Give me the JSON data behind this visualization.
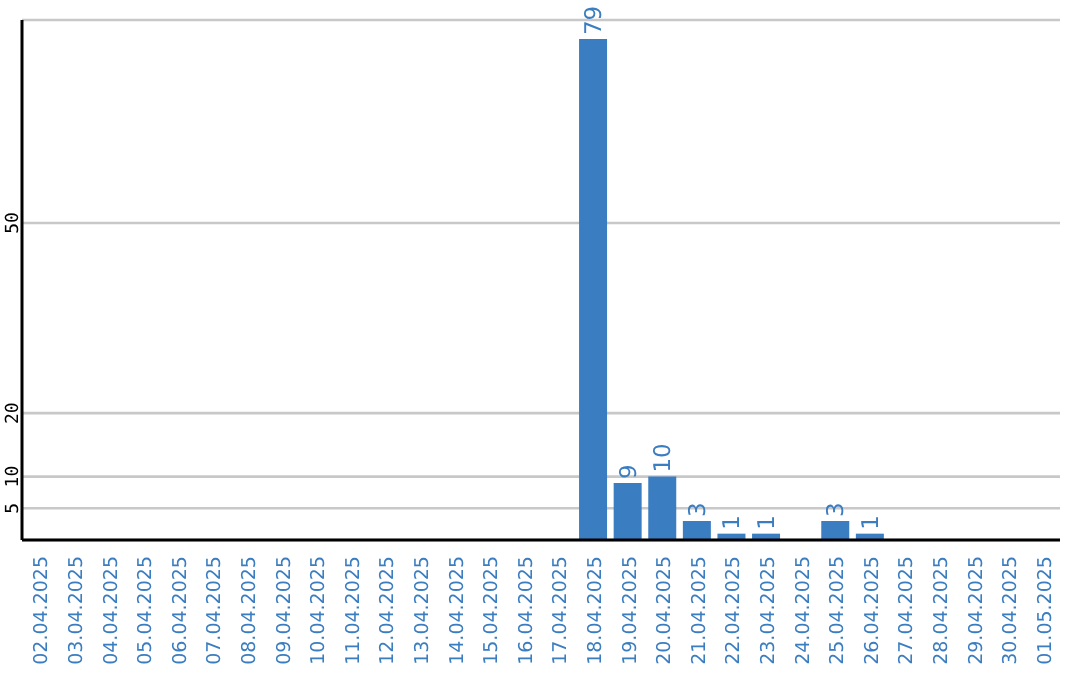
{
  "chart_data": {
    "type": "bar",
    "categories": [
      "02.04.2025",
      "03.04.2025",
      "04.04.2025",
      "05.04.2025",
      "06.04.2025",
      "07.04.2025",
      "08.04.2025",
      "09.04.2025",
      "10.04.2025",
      "11.04.2025",
      "12.04.2025",
      "13.04.2025",
      "14.04.2025",
      "15.04.2025",
      "16.04.2025",
      "17.04.2025",
      "18.04.2025",
      "19.04.2025",
      "20.04.2025",
      "21.04.2025",
      "22.04.2025",
      "23.04.2025",
      "24.04.2025",
      "25.04.2025",
      "26.04.2025",
      "27.04.2025",
      "28.04.2025",
      "29.04.2025",
      "30.04.2025",
      "01.05.2025"
    ],
    "values": [
      0,
      0,
      0,
      0,
      0,
      0,
      0,
      0,
      0,
      0,
      0,
      0,
      0,
      0,
      0,
      0,
      79,
      9,
      10,
      3,
      1,
      1,
      0,
      3,
      1,
      0,
      0,
      0,
      0,
      0
    ],
    "value_labels": [
      null,
      null,
      null,
      null,
      null,
      null,
      null,
      null,
      null,
      null,
      null,
      null,
      null,
      null,
      null,
      null,
      "79",
      "9",
      "10",
      "3",
      "1",
      "1",
      null,
      "3",
      "1",
      null,
      null,
      null,
      null,
      null
    ],
    "color": "#3a7dc0",
    "ylim": [
      0,
      82
    ],
    "yticks": [
      5,
      10,
      20,
      50
    ],
    "grid": "y",
    "legend": false
  }
}
